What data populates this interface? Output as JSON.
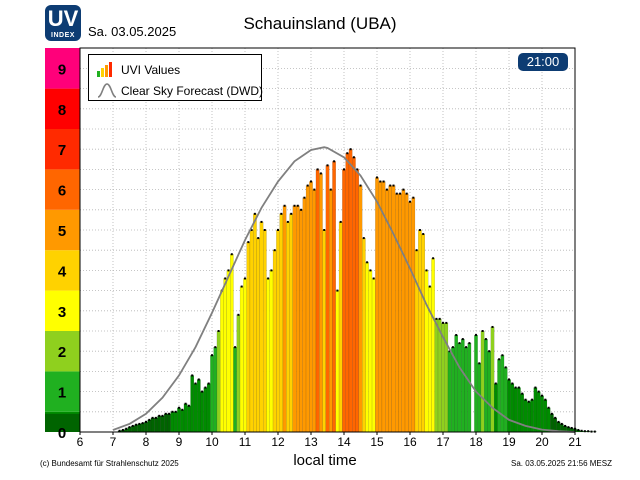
{
  "header": {
    "logo_text": "UV",
    "logo_sub": "INDEX",
    "date": "Sa. 03.05.2025",
    "title": "Schauinsland (UBA)",
    "time_badge": "21:00"
  },
  "legend": {
    "uvi_label": "UVI Values",
    "forecast_label": "Clear Sky Forecast (DWD)"
  },
  "footer": {
    "xlabel": "local time",
    "copyright": "(c) Bundesamt für Strahlenschutz 2025",
    "timestamp": "Sa. 03.05.2025  21:56  MESZ"
  },
  "colors": {
    "uv_scale": [
      "#006400",
      "#008c00",
      "#20b020",
      "#8fd01e",
      "#ffff00",
      "#ffd200",
      "#ff9900",
      "#ff6600",
      "#ff2a00",
      "#ff0000",
      "#ff007a"
    ],
    "forecast_line": "#808080",
    "logo_bg": "#0d3c73"
  },
  "chart_data": {
    "type": "bar",
    "title": "Schauinsland (UBA)",
    "xlabel": "local time",
    "ylabel": "",
    "xlim": [
      6,
      21
    ],
    "ylim": [
      0,
      9.5
    ],
    "x_ticks": [
      6,
      7,
      8,
      9,
      10,
      11,
      12,
      13,
      14,
      15,
      16,
      17,
      18,
      19,
      20,
      21
    ],
    "y_ticks": [
      0,
      1,
      2,
      3,
      4,
      5,
      6,
      7,
      8,
      9
    ],
    "grid": true,
    "legend_position": "top-left",
    "series": [
      {
        "name": "UVI Values",
        "type": "bar",
        "bar_width_hours": 0.1,
        "start": 7.1,
        "values": [
          0.0,
          0.03,
          0.05,
          0.08,
          0.12,
          0.15,
          0.18,
          0.2,
          0.22,
          0.25,
          0.3,
          0.35,
          0.35,
          0.4,
          0.4,
          0.45,
          0.45,
          0.5,
          0.5,
          0.6,
          0.55,
          0.7,
          0.65,
          1.4,
          1.2,
          1.3,
          1.0,
          1.1,
          1.2,
          1.9,
          2.1,
          2.5,
          3.5,
          3.8,
          4.0,
          4.4,
          2.1,
          2.9,
          3.6,
          3.8,
          4.7,
          5.0,
          5.4,
          4.8,
          5.2,
          5.0,
          3.8,
          4.0,
          4.5,
          5.0,
          5.4,
          5.6,
          5.2,
          5.4,
          5.6,
          5.6,
          5.5,
          5.8,
          6.1,
          6.2,
          6.0,
          6.5,
          6.4,
          5.0,
          6.6,
          6.0,
          6.7,
          3.5,
          5.2,
          6.5,
          6.9,
          7.0,
          6.8,
          6.5,
          6.1,
          4.8,
          4.2,
          4.0,
          3.8,
          6.3,
          6.2,
          6.2,
          6.0,
          6.1,
          6.1,
          5.9,
          5.9,
          6.0,
          5.9,
          5.7,
          5.8,
          4.5,
          5.0,
          4.9,
          4.0,
          3.6,
          4.3,
          2.8,
          2.8,
          2.7,
          2.7,
          2.0,
          2.1,
          2.4,
          2.2,
          2.3,
          2.1,
          2.2,
          0.0,
          2.4,
          1.7,
          2.5,
          2.3,
          2.0,
          2.6,
          1.2,
          1.8,
          1.9,
          1.6,
          1.3,
          1.2,
          1.1,
          1.1,
          0.95,
          0.8,
          0.75,
          0.8,
          1.1,
          1.0,
          0.9,
          0.8,
          0.6,
          0.45,
          0.35,
          0.25,
          0.2,
          0.15,
          0.12,
          0.1,
          0.08,
          0.05,
          0.03,
          0.02,
          0.02,
          0.01,
          0.01
        ]
      },
      {
        "name": "Clear Sky Forecast (DWD)",
        "type": "line",
        "x": [
          7,
          7.5,
          8,
          8.5,
          9,
          9.5,
          10,
          10.5,
          11,
          11.5,
          12,
          12.5,
          13,
          13.4,
          13.5,
          14,
          14.5,
          15,
          15.5,
          16,
          16.5,
          17,
          17.5,
          18,
          18.5,
          19,
          19.5,
          20,
          20.5,
          21
        ],
        "y": [
          0.05,
          0.2,
          0.45,
          0.85,
          1.4,
          2.1,
          2.95,
          3.85,
          4.75,
          5.55,
          6.2,
          6.7,
          6.98,
          7.05,
          7.03,
          6.8,
          6.35,
          5.7,
          4.9,
          4.05,
          3.15,
          2.35,
          1.6,
          1.0,
          0.6,
          0.3,
          0.15,
          0.06,
          0.02,
          0.0
        ]
      }
    ]
  }
}
